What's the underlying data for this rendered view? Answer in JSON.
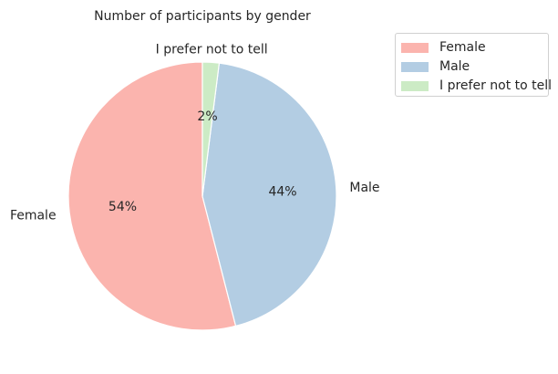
{
  "chart_data": {
    "type": "pie",
    "title": "Number of participants by gender",
    "labels": [
      "Female",
      "Male",
      "I prefer not to tell"
    ],
    "values": [
      54,
      44,
      2
    ],
    "value_labels": [
      "54%",
      "44%",
      "2%"
    ],
    "colors": [
      "#fbb4ae",
      "#b3cde3",
      "#ccebc5"
    ],
    "start_angle_deg": 90,
    "direction": "counterclockwise",
    "legend_position": "top-right"
  }
}
